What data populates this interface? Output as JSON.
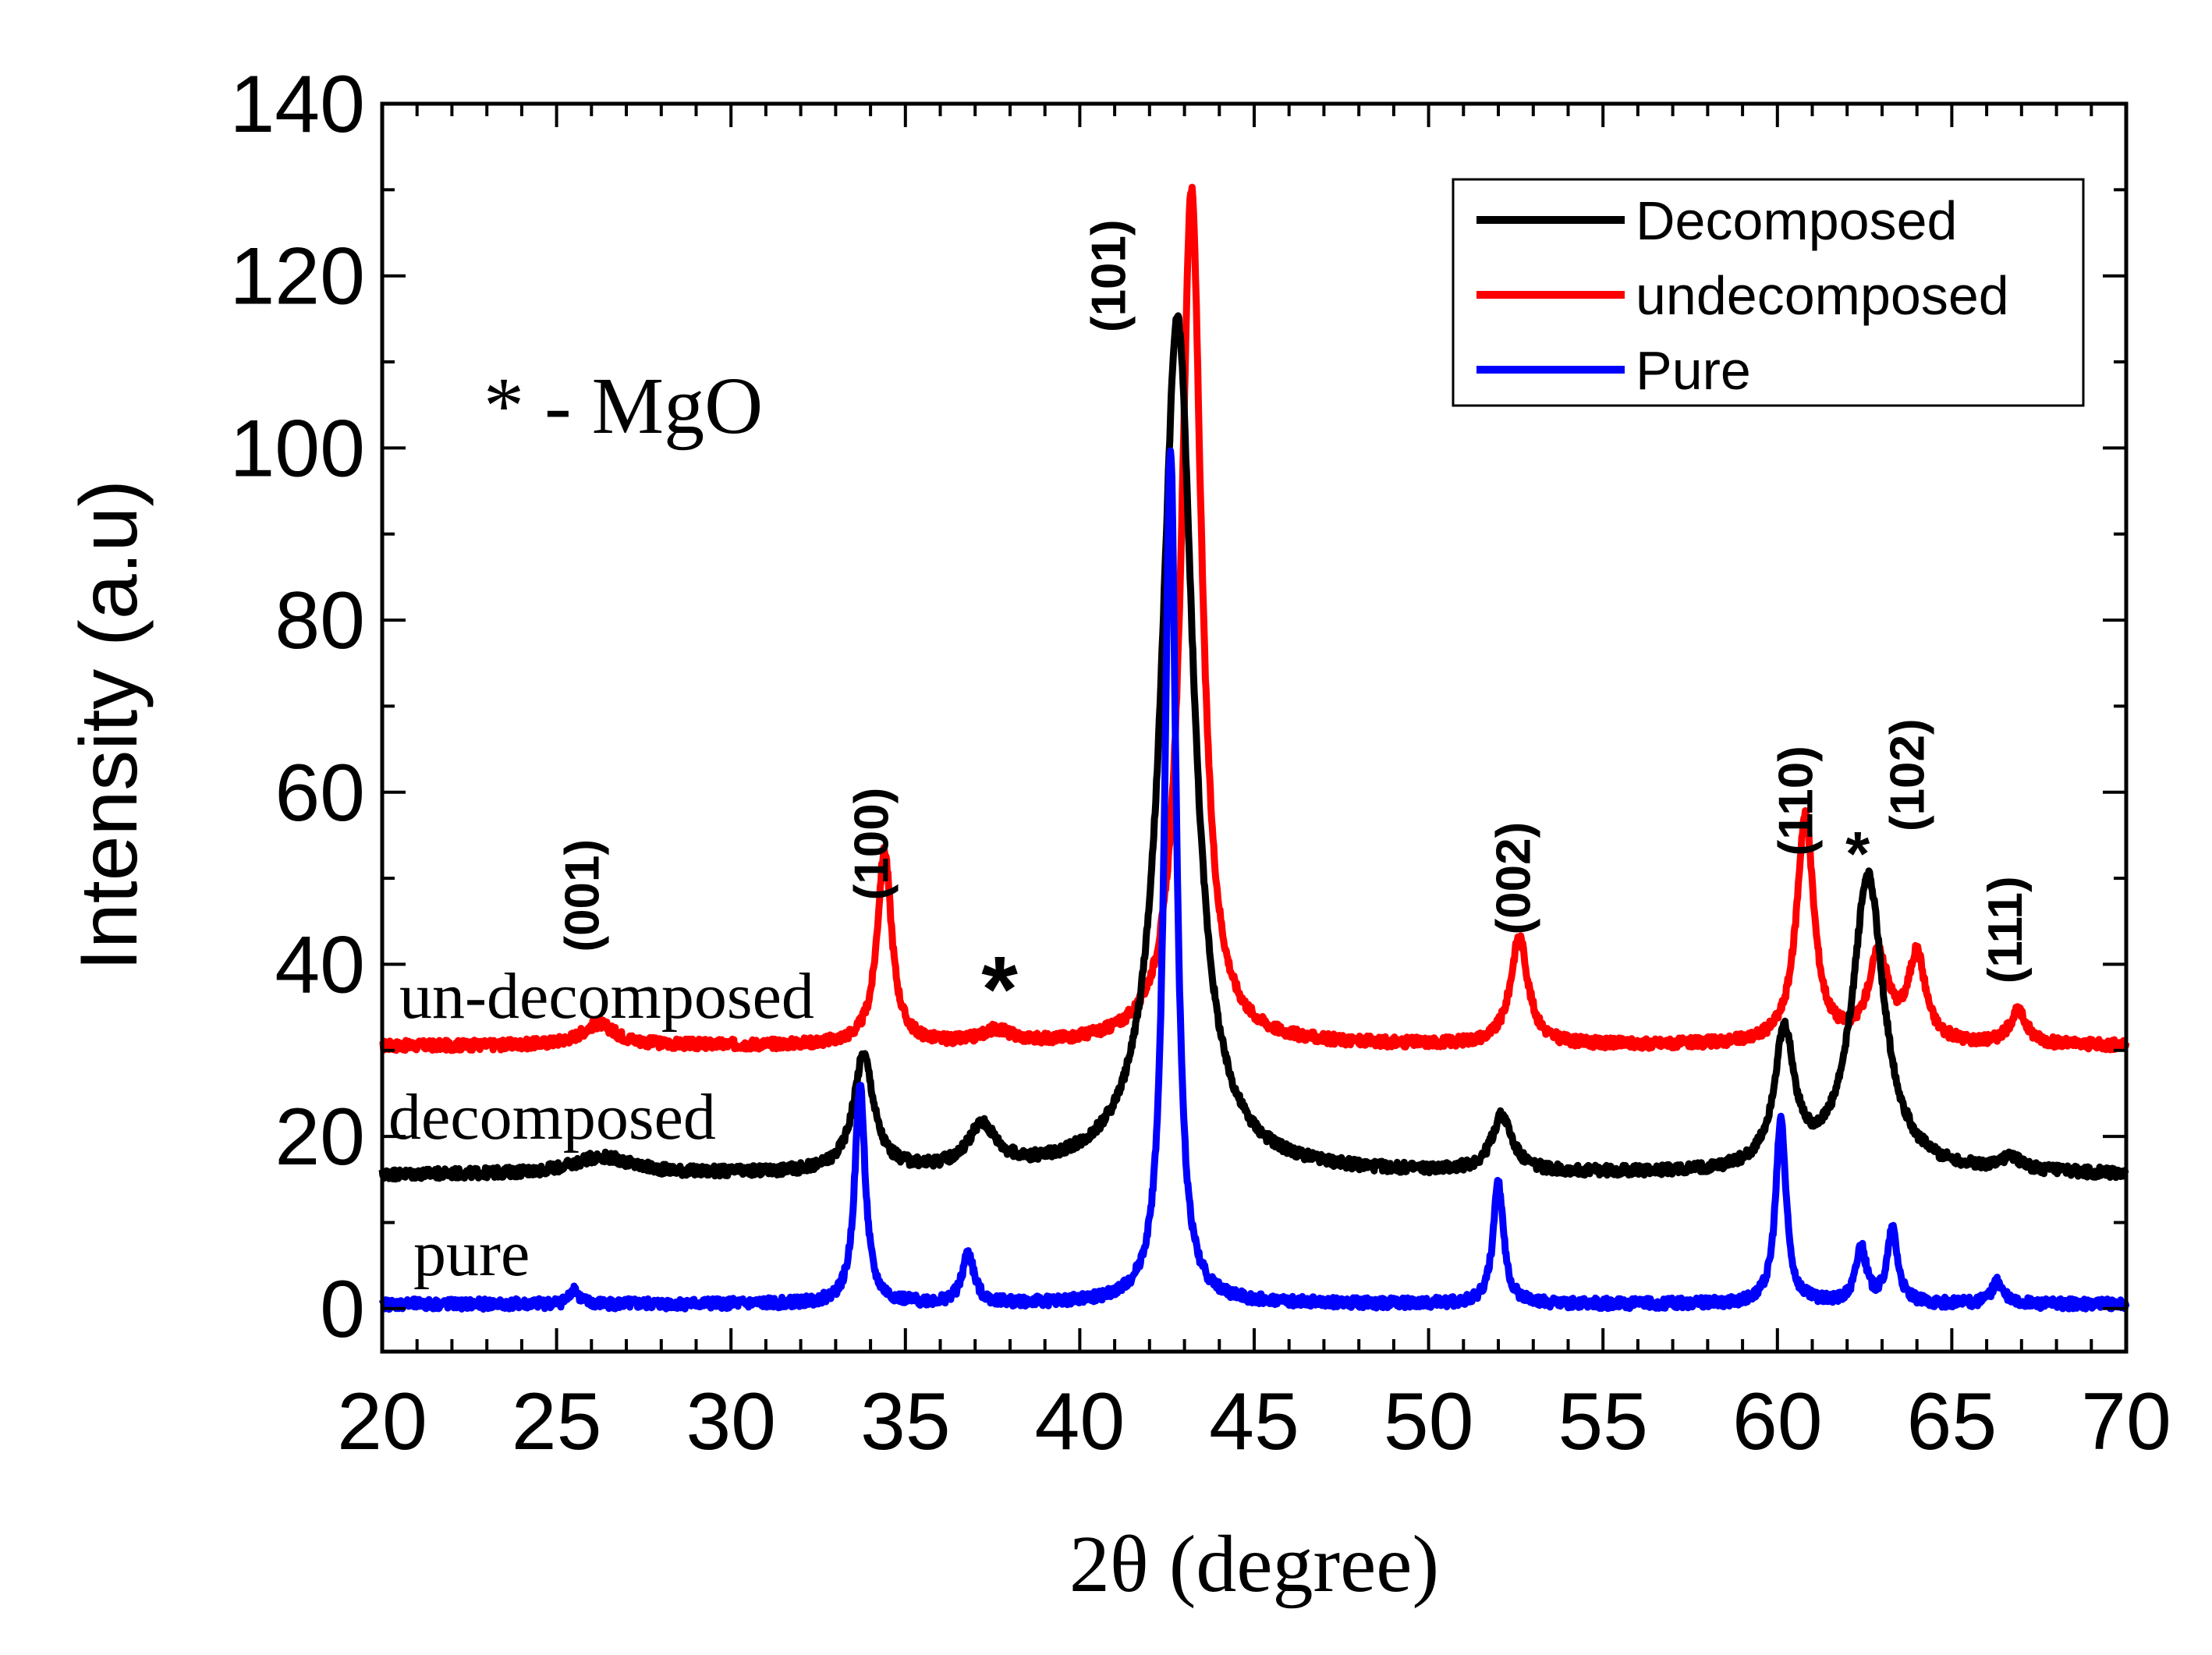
{
  "chart_data": {
    "type": "line",
    "title": "",
    "xlabel": "2θ (degree)",
    "ylabel": "Intensity (a.u)",
    "xlim": [
      20,
      70
    ],
    "ylim": [
      -5,
      140
    ],
    "x_ticks": [
      20,
      25,
      30,
      35,
      40,
      45,
      50,
      55,
      60,
      65,
      70
    ],
    "y_ticks": [
      0,
      20,
      40,
      60,
      80,
      100,
      120,
      140
    ],
    "legend": {
      "position": "top-right",
      "entries": [
        {
          "name": "Decomposed",
          "color": "#000000"
        },
        {
          "name": "undecomposed",
          "color": "#ff0000"
        },
        {
          "name": "Pure",
          "color": "#0000ff"
        }
      ]
    },
    "note": "* - MgO",
    "series": [
      {
        "name": "undecomposed",
        "label": "un-decomposed",
        "color": "#ff0000",
        "baseline": 30.5,
        "peaks": [
          {
            "x": 26.2,
            "h": 2.5,
            "w": 0.6
          },
          {
            "x": 34.4,
            "h": 22.5,
            "w": 0.25
          },
          {
            "x": 37.6,
            "h": 1.5,
            "w": 0.5
          },
          {
            "x": 43.2,
            "h": 99.5,
            "w": 0.35
          },
          {
            "x": 52.6,
            "h": 12.5,
            "w": 0.3
          },
          {
            "x": 60.8,
            "h": 26.5,
            "w": 0.3
          },
          {
            "x": 62.9,
            "h": 10.0,
            "w": 0.35
          },
          {
            "x": 64.0,
            "h": 10.0,
            "w": 0.3
          },
          {
            "x": 66.9,
            "h": 3.8,
            "w": 0.3
          }
        ]
      },
      {
        "name": "Decomposed",
        "label": "decomposed",
        "color": "#000000",
        "baseline": 15.5,
        "peaks": [
          {
            "x": 26.3,
            "h": 2.0,
            "w": 1.0
          },
          {
            "x": 33.8,
            "h": 13.5,
            "w": 0.35
          },
          {
            "x": 37.2,
            "h": 5.0,
            "w": 0.5
          },
          {
            "x": 42.8,
            "h": 99.5,
            "w": 0.55
          },
          {
            "x": 52.1,
            "h": 6.5,
            "w": 0.35
          },
          {
            "x": 60.2,
            "h": 15.5,
            "w": 0.35
          },
          {
            "x": 62.6,
            "h": 34.5,
            "w": 0.55
          },
          {
            "x": 66.7,
            "h": 1.5,
            "w": 0.4
          }
        ]
      },
      {
        "name": "Pure",
        "label": "pure",
        "color": "#0000ff",
        "baseline": 0.5,
        "peaks": [
          {
            "x": 25.5,
            "h": 1.8,
            "w": 0.15
          },
          {
            "x": 33.7,
            "h": 25.5,
            "w": 0.18
          },
          {
            "x": 36.8,
            "h": 5.8,
            "w": 0.2
          },
          {
            "x": 42.6,
            "h": 99.5,
            "w": 0.2
          },
          {
            "x": 52.0,
            "h": 14.0,
            "w": 0.18
          },
          {
            "x": 60.1,
            "h": 21.5,
            "w": 0.18
          },
          {
            "x": 62.4,
            "h": 6.5,
            "w": 0.18
          },
          {
            "x": 63.3,
            "h": 8.5,
            "w": 0.18
          },
          {
            "x": 66.3,
            "h": 2.5,
            "w": 0.2
          }
        ]
      }
    ],
    "peak_labels": [
      {
        "text": "(001)",
        "x": 26.2,
        "y": 48
      },
      {
        "text": "(100)",
        "x": 34.5,
        "y": 54
      },
      {
        "text": "(101)",
        "x": 41.3,
        "y": 120
      },
      {
        "text": "(002)",
        "x": 52.9,
        "y": 50
      },
      {
        "text": "(110)",
        "x": 61.0,
        "y": 59
      },
      {
        "text": "(102)",
        "x": 64.2,
        "y": 62
      },
      {
        "text": "(111)",
        "x": 67.0,
        "y": 44
      }
    ],
    "mgo_markers": [
      {
        "text": "*",
        "x": 37.7,
        "y": 37
      },
      {
        "text": "*",
        "x": 62.3,
        "y": 54
      }
    ]
  }
}
